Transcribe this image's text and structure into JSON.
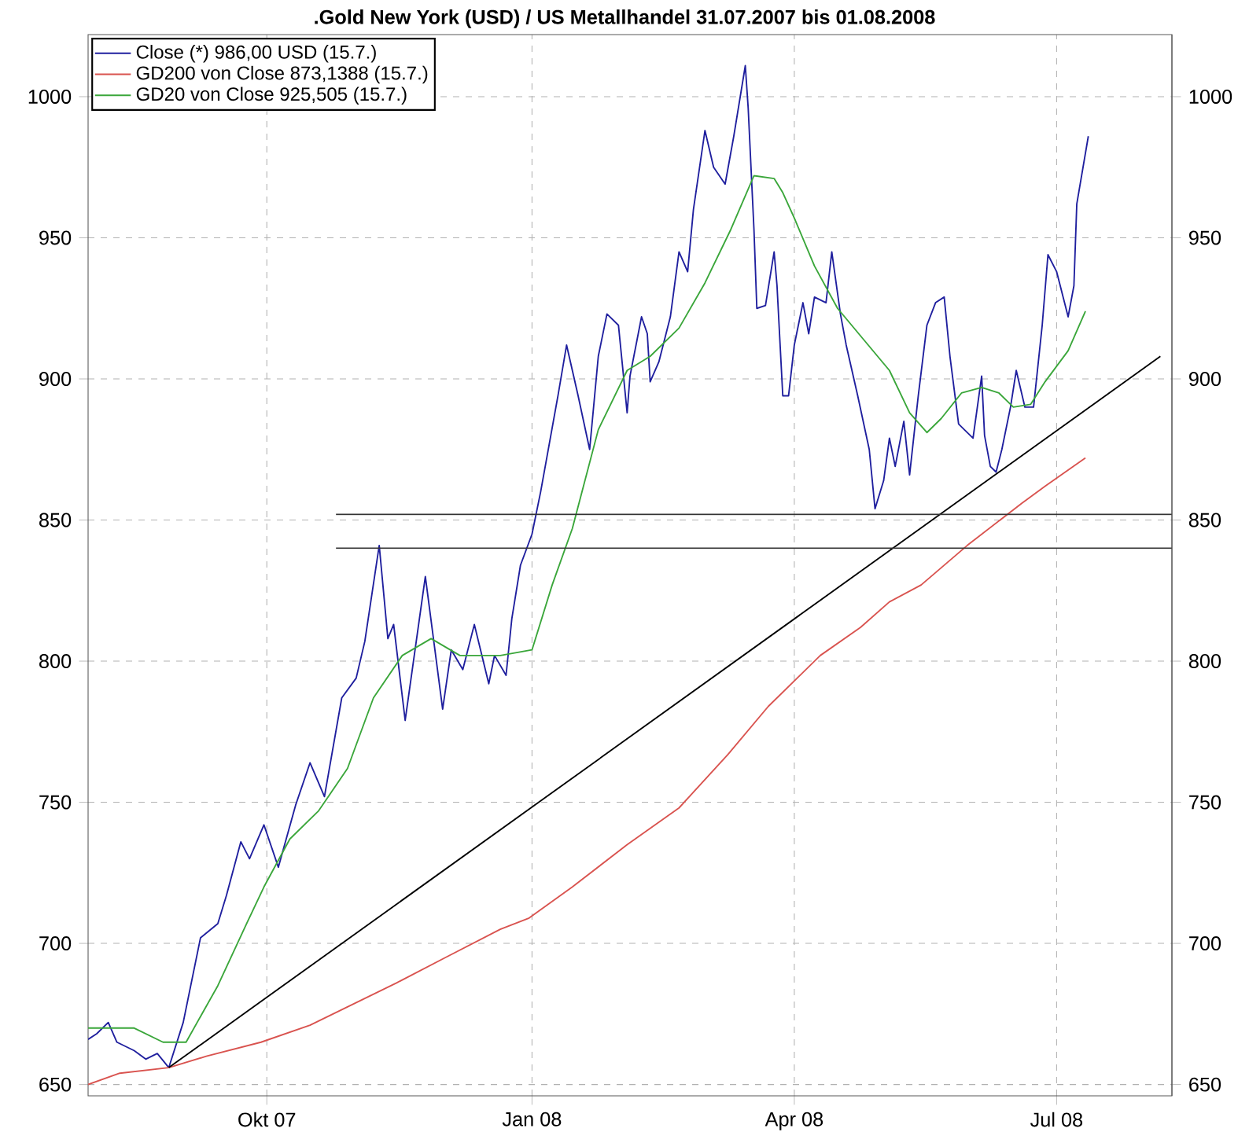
{
  "chart_data": {
    "type": "line",
    "title": ".Gold New York (USD) / US Metallhandel 31.07.2007 bis 01.08.2008",
    "xlim": [
      "2007-07-31",
      "2008-08-10"
    ],
    "xticks": [
      {
        "value": "2007-10-01",
        "label": "Okt 07"
      },
      {
        "value": "2008-01-01",
        "label": "Jan 08"
      },
      {
        "value": "2008-04-01",
        "label": "Apr 08"
      },
      {
        "value": "2008-07-01",
        "label": "Jul 08"
      }
    ],
    "ylim": [
      646,
      1022
    ],
    "yticks": [
      650,
      700,
      750,
      800,
      850,
      900,
      950,
      1000
    ],
    "y2lim": [
      646,
      1022
    ],
    "y2ticks": [
      650,
      700,
      750,
      800,
      850,
      900,
      950,
      1000
    ],
    "grid": true,
    "legend": "top left",
    "marker": "none",
    "series": [
      {
        "name": "Close (*) 986,00 USD (15.7.)",
        "color": "#1f1f9e",
        "x": [
          "2007-07-31",
          "2007-08-03",
          "2007-08-07",
          "2007-08-10",
          "2007-08-16",
          "2007-08-20",
          "2007-08-24",
          "2007-08-28",
          "2007-09-02",
          "2007-09-08",
          "2007-09-14",
          "2007-09-17",
          "2007-09-22",
          "2007-09-25",
          "2007-09-30",
          "2007-10-05",
          "2007-10-11",
          "2007-10-16",
          "2007-10-21",
          "2007-10-27",
          "2007-11-01",
          "2007-11-04",
          "2007-11-09",
          "2007-11-12",
          "2007-11-14",
          "2007-11-18",
          "2007-11-25",
          "2007-12-01",
          "2007-12-04",
          "2007-12-08",
          "2007-12-12",
          "2007-12-17",
          "2007-12-19",
          "2007-12-23",
          "2007-12-25",
          "2007-12-28",
          "2008-01-01",
          "2008-01-04",
          "2008-01-10",
          "2008-01-13",
          "2008-01-17",
          "2008-01-21",
          "2008-01-24",
          "2008-01-27",
          "2008-01-31",
          "2008-02-03",
          "2008-02-04",
          "2008-02-08",
          "2008-02-10",
          "2008-02-11",
          "2008-02-14",
          "2008-02-18",
          "2008-02-21",
          "2008-02-24",
          "2008-02-26",
          "2008-03-01",
          "2008-03-04",
          "2008-03-08",
          "2008-03-11",
          "2008-03-15",
          "2008-03-16",
          "2008-03-18",
          "2008-03-19",
          "2008-03-22",
          "2008-03-25",
          "2008-03-26",
          "2008-03-28",
          "2008-03-30",
          "2008-04-01",
          "2008-04-04",
          "2008-04-06",
          "2008-04-08",
          "2008-04-12",
          "2008-04-14",
          "2008-04-17",
          "2008-04-19",
          "2008-04-23",
          "2008-04-27",
          "2008-04-29",
          "2008-05-02",
          "2008-05-04",
          "2008-05-06",
          "2008-05-09",
          "2008-05-11",
          "2008-05-14",
          "2008-05-17",
          "2008-05-20",
          "2008-05-23",
          "2008-05-25",
          "2008-05-28",
          "2008-05-30",
          "2008-06-02",
          "2008-06-05",
          "2008-06-06",
          "2008-06-08",
          "2008-06-10",
          "2008-06-12",
          "2008-06-15",
          "2008-06-17",
          "2008-06-20",
          "2008-06-23",
          "2008-06-26",
          "2008-06-28",
          "2008-07-01",
          "2008-07-05",
          "2008-07-07",
          "2008-07-08",
          "2008-07-12"
        ],
        "values": [
          666,
          668,
          672,
          665,
          662,
          659,
          661,
          656,
          672,
          702,
          707,
          717,
          736,
          730,
          742,
          727,
          749,
          764,
          752,
          787,
          794,
          807,
          841,
          808,
          813,
          779,
          830,
          783,
          804,
          797,
          813,
          792,
          802,
          795,
          815,
          834,
          845,
          860,
          894,
          912,
          894,
          875,
          908,
          923,
          919,
          888,
          901,
          922,
          916,
          899,
          906,
          922,
          945,
          938,
          960,
          988,
          975,
          969,
          986,
          1011,
          996,
          953,
          925,
          926,
          945,
          933,
          894,
          894,
          912,
          927,
          916,
          929,
          927,
          945,
          923,
          912,
          894,
          875,
          854,
          864,
          879,
          869,
          885,
          866,
          894,
          919,
          927,
          929,
          908,
          884,
          882,
          879,
          901,
          880,
          869,
          867,
          875,
          890,
          903,
          890,
          890,
          919,
          944,
          938,
          922,
          933,
          962,
          986
        ]
      },
      {
        "name": "GD200 von Close 873,1388 (15.7.)",
        "color": "#d9534f",
        "x": [
          "2007-07-31",
          "2007-08-11",
          "2007-08-28",
          "2007-09-10",
          "2007-09-29",
          "2007-10-16",
          "2007-11-03",
          "2007-11-15",
          "2007-12-02",
          "2007-12-21",
          "2007-12-31",
          "2008-01-15",
          "2008-02-03",
          "2008-02-21",
          "2008-03-09",
          "2008-03-23",
          "2008-04-10",
          "2008-04-24",
          "2008-05-04",
          "2008-05-15",
          "2008-05-31",
          "2008-06-19",
          "2008-06-27",
          "2008-07-11"
        ],
        "values": [
          650,
          654,
          656,
          660,
          665,
          671,
          680,
          686,
          695,
          705,
          709,
          720,
          735,
          748,
          767,
          784,
          802,
          812,
          821,
          827,
          841,
          856,
          862,
          872
        ]
      },
      {
        "name": "GD20 von Close 925,505 (15.7.)",
        "color": "#3aa63a",
        "x": [
          "2007-07-31",
          "2007-08-16",
          "2007-08-26",
          "2007-09-03",
          "2007-09-14",
          "2007-09-24",
          "2007-09-30",
          "2007-10-09",
          "2007-10-19",
          "2007-10-29",
          "2007-11-07",
          "2007-11-17",
          "2007-11-27",
          "2007-12-07",
          "2007-12-21",
          "2008-01-01",
          "2008-01-08",
          "2008-01-15",
          "2008-01-24",
          "2008-02-03",
          "2008-02-11",
          "2008-02-21",
          "2008-03-01",
          "2008-03-10",
          "2008-03-18",
          "2008-03-25",
          "2008-03-28",
          "2008-04-01",
          "2008-04-08",
          "2008-04-16",
          "2008-04-25",
          "2008-05-04",
          "2008-05-11",
          "2008-05-17",
          "2008-05-22",
          "2008-05-29",
          "2008-06-05",
          "2008-06-11",
          "2008-06-16",
          "2008-06-22",
          "2008-06-27",
          "2008-07-05",
          "2008-07-11"
        ],
        "values": [
          670,
          670,
          665,
          665,
          685,
          707,
          720,
          737,
          747,
          762,
          787,
          802,
          808,
          802,
          802,
          804,
          827,
          847,
          882,
          903,
          908,
          918,
          934,
          953,
          972,
          971,
          966,
          957,
          940,
          925,
          914,
          903,
          888,
          881,
          886,
          895,
          897,
          895,
          890,
          891,
          899,
          910,
          924
        ]
      },
      {
        "color": "#000000",
        "x": [
          "2007-08-28",
          "2008-08-06"
        ],
        "values": [
          656,
          908
        ]
      },
      {
        "color": "#333333",
        "x": [
          "2007-10-25",
          "2008-08-10"
        ],
        "values": [
          852,
          852
        ]
      },
      {
        "color": "#333333",
        "x": [
          "2007-10-25",
          "2008-08-10"
        ],
        "values": [
          840,
          840
        ]
      }
    ]
  }
}
